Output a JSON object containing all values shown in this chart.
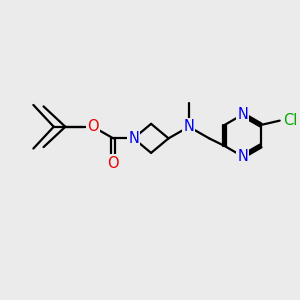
{
  "background_color": "#ebebeb",
  "bond_color": "#000000",
  "atom_colors": {
    "N": "#0000ee",
    "O": "#ee0000",
    "Cl": "#00aa00",
    "C": "#000000"
  },
  "figsize": [
    3.0,
    3.0
  ],
  "dpi": 100,
  "xlim": [
    0,
    10
  ],
  "ylim": [
    0,
    10
  ]
}
